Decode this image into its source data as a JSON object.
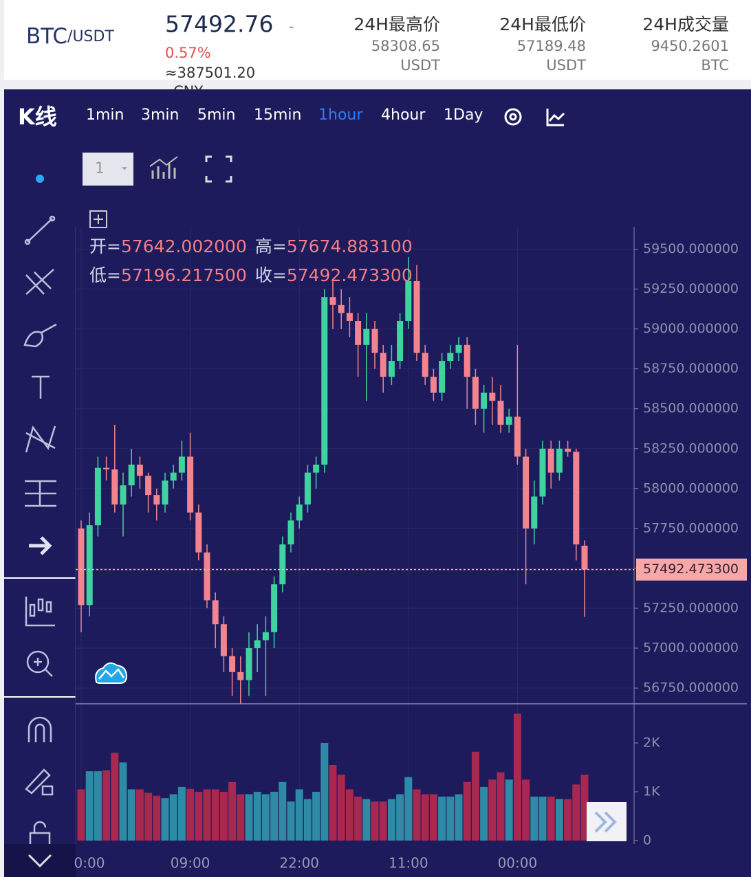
{
  "header": {
    "symbol": "BTC",
    "quote": "/USDT",
    "price": "57492.76",
    "change_sign": "-",
    "change": "0.57%",
    "cny": "≈387501.20",
    "cny_unit": "CNY",
    "stats": [
      {
        "label": "24H最高价",
        "value": "58308.65",
        "unit": "USDT"
      },
      {
        "label": "24H最低价",
        "value": "57189.48",
        "unit": "USDT"
      },
      {
        "label": "24H成交量",
        "value": "9450.2601",
        "unit": "BTC"
      }
    ]
  },
  "toolbar": {
    "title": "K线",
    "intervals": [
      "1min",
      "3min",
      "5min",
      "15min",
      "1hour",
      "4hour",
      "1Day"
    ],
    "active_interval": 4,
    "period_select": "1"
  },
  "ohlc_legend": [
    {
      "label": "开=",
      "value": "57642.002000"
    },
    {
      "label": "高=",
      "value": "57674.883100"
    },
    {
      "label": "低=",
      "value": "57196.217500"
    },
    {
      "label": "收=",
      "value": "57492.473300"
    }
  ],
  "chart_data": [
    {
      "type": "candlestick",
      "categories": [
        "0:00",
        null,
        null,
        null,
        null,
        null,
        null,
        null,
        null,
        null,
        null,
        null,
        null,
        "09:00",
        null,
        null,
        null,
        null,
        null,
        null,
        null,
        null,
        null,
        null,
        null,
        null,
        "22:00",
        null,
        null,
        null,
        null,
        null,
        null,
        null,
        null,
        null,
        null,
        null,
        null,
        "11:00",
        null,
        null,
        null,
        null,
        null,
        null,
        null,
        null,
        null,
        null,
        null,
        null,
        "00:00",
        null,
        null,
        null,
        null,
        null,
        null,
        null,
        null
      ],
      "open": [
        57750,
        57270,
        57770,
        58130,
        58120,
        57900,
        58020,
        58150,
        58080,
        57960,
        57900,
        58050,
        58100,
        58200,
        57850,
        57600,
        57300,
        57150,
        56950,
        56850,
        56800,
        57000,
        57050,
        57100,
        57400,
        57650,
        57800,
        57900,
        58100,
        58150,
        59200,
        59150,
        59100,
        59050,
        58900,
        59000,
        58850,
        58700,
        58800,
        59050,
        59300,
        58850,
        58700,
        58600,
        58800,
        58850,
        58900,
        58700,
        58500,
        58600,
        58550,
        58400,
        58450,
        58200,
        57750,
        57950,
        58250,
        58100,
        58250,
        58230,
        57642.002
      ],
      "high": [
        57800,
        57850,
        58200,
        58200,
        58400,
        58100,
        58250,
        58200,
        58100,
        58000,
        58100,
        58150,
        58300,
        58350,
        57900,
        57650,
        57350,
        57200,
        57000,
        56950,
        57100,
        57150,
        57200,
        57450,
        57700,
        57850,
        57950,
        58150,
        58200,
        59250,
        59300,
        59250,
        59200,
        59100,
        59100,
        59050,
        58900,
        58900,
        59100,
        59450,
        59400,
        58900,
        58750,
        58850,
        58900,
        58950,
        58950,
        58750,
        58650,
        58700,
        58650,
        58500,
        58900,
        58250,
        58050,
        58300,
        58300,
        58300,
        58300,
        58250,
        57674.8831
      ],
      "low": [
        57100,
        57200,
        57700,
        58050,
        57850,
        57700,
        57950,
        58000,
        57850,
        57800,
        57850,
        58000,
        58050,
        57800,
        57550,
        57250,
        57000,
        56850,
        56700,
        56650,
        56700,
        56850,
        56700,
        57000,
        57350,
        57600,
        57750,
        57850,
        58000,
        58100,
        59000,
        59000,
        58950,
        58700,
        58550,
        58750,
        58600,
        58650,
        58750,
        59000,
        58800,
        58650,
        58550,
        58550,
        58750,
        58800,
        58500,
        58400,
        58350,
        58400,
        58350,
        58350,
        58150,
        57400,
        57650,
        57900,
        58000,
        58050,
        58200,
        57550,
        57196.2175
      ],
      "close": [
        57270,
        57770,
        58130,
        58120,
        57900,
        58020,
        58150,
        58080,
        57960,
        57900,
        58050,
        58100,
        58200,
        57850,
        57600,
        57300,
        57150,
        56950,
        56850,
        56800,
        57000,
        57050,
        57100,
        57400,
        57650,
        57800,
        57900,
        58100,
        58150,
        59200,
        59150,
        59100,
        59050,
        58900,
        59000,
        58850,
        58700,
        58800,
        59050,
        59300,
        58850,
        58700,
        58600,
        58800,
        58850,
        58900,
        58700,
        58500,
        58600,
        58550,
        58400,
        58450,
        58200,
        57750,
        57950,
        58250,
        58100,
        58250,
        58230,
        57650,
        57492.4733
      ],
      "up_color": "#3fd3a0",
      "down_color": "#f2848f",
      "ylim": [
        56660,
        59640
      ],
      "yticks": [
        {
          "value": 56750,
          "label": "56750.000000"
        },
        {
          "value": 57000,
          "label": "57000.000000"
        },
        {
          "value": 57250,
          "label": "57250.000000"
        },
        {
          "value": 57500,
          "label": "57500.000000"
        },
        {
          "value": 57750,
          "label": "57750.000000"
        },
        {
          "value": 58000,
          "label": "58000.000000"
        },
        {
          "value": 58250,
          "label": "58250.000000"
        },
        {
          "value": 58500,
          "label": "58500.000000"
        },
        {
          "value": 58750,
          "label": "58750.000000"
        },
        {
          "value": 59000,
          "label": "59000.000000"
        },
        {
          "value": 59250,
          "label": "59250.000000"
        },
        {
          "value": 59500,
          "label": "59500.000000"
        }
      ],
      "grid": true,
      "last_price": {
        "value": 57492.4733,
        "label": "57492.473300"
      }
    },
    {
      "type": "bar",
      "values": [
        1050,
        1420,
        1420,
        1440,
        1800,
        1600,
        1050,
        1050,
        980,
        920,
        870,
        950,
        1100,
        1060,
        1000,
        1050,
        1050,
        1000,
        1200,
        950,
        950,
        1000,
        950,
        1000,
        1200,
        800,
        1050,
        850,
        1000,
        2000,
        1550,
        1350,
        1050,
        900,
        850,
        800,
        800,
        850,
        950,
        1300,
        1050,
        950,
        950,
        900,
        900,
        950,
        1200,
        1820,
        1100,
        1250,
        1400,
        1250,
        2600,
        1250,
        900,
        900,
        900,
        850,
        850,
        1150,
        1350
      ],
      "up_color": "#2f8aa6",
      "down_color": "#a8284f",
      "ylim": [
        0,
        2718
      ],
      "yticks": [
        0,
        {
          "value": 1000,
          "label": "1K"
        },
        {
          "value": 2000,
          "label": "2K"
        }
      ]
    }
  ]
}
